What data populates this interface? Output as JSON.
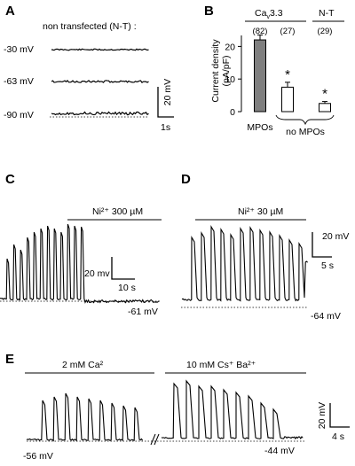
{
  "panels": {
    "A": {
      "label": "A",
      "title": "non transfected (N-T) :",
      "traces": [
        {
          "potential": "-30 mV"
        },
        {
          "potential": "-63 mV"
        },
        {
          "potential": "-90 mV"
        }
      ],
      "scale_v": "20 mV",
      "scale_t": "1s"
    },
    "B": {
      "label": "B",
      "header_cav": "Ca",
      "header_cav_sub": "v",
      "header_cav_num": "3.3",
      "header_nt": "N-T",
      "ylabel_line1": "Current density",
      "ylabel_line2": "(pA/pF)",
      "yticks": [
        "0",
        "10",
        "20"
      ],
      "xlabel_mpos": "MPOs",
      "xlabel_no_mpos": "no MPOs",
      "sig_symbol": "*"
    },
    "C": {
      "label": "C",
      "treatment": "Ni²⁺ 300 µM",
      "scale_v": "20 mv",
      "scale_t": "10 s",
      "baseline": "-61 mV"
    },
    "D": {
      "label": "D",
      "treatment": "Ni²⁺ 30 µM",
      "scale_v": "20 mV",
      "scale_t": "5 s",
      "baseline": "-64 mV"
    },
    "E": {
      "label": "E",
      "condition_1": "2 mM Ca²",
      "condition_2": "10 mM Cs⁺ Ba²⁺",
      "baseline_1": "-56 mV",
      "baseline_2": "-44 mV",
      "scale_v": "20 mV",
      "scale_t": "4 s"
    }
  },
  "chart_data": {
    "type": "bar",
    "categories": [
      "MPOs",
      "no MPOs",
      "no MPOs"
    ],
    "series": [
      {
        "values": [
          22,
          7.5,
          2.5
        ]
      }
    ],
    "errors": [
      1.5,
      1.5,
      0.6
    ],
    "n_labels": [
      "(82)",
      "(27)",
      "(29)"
    ],
    "bar_fill": [
      "#7f7f7f",
      "#ffffff",
      "#ffffff"
    ],
    "significance": [
      false,
      true,
      true
    ],
    "ylim": [
      0,
      25
    ],
    "yticks": [
      0,
      10,
      20
    ]
  }
}
